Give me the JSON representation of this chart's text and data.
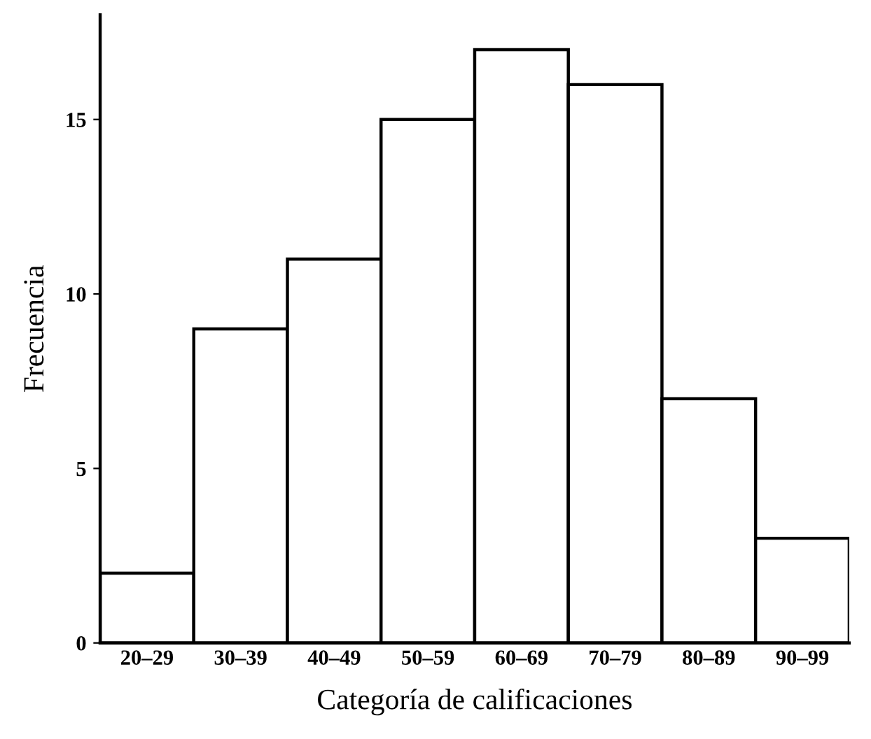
{
  "chart_data": {
    "type": "bar",
    "xlabel": "Categoría de calificaciones",
    "ylabel": "Frecuencia",
    "categories": [
      "20–29",
      "30–39",
      "40–49",
      "50–59",
      "60–69",
      "70–79",
      "80–89",
      "90–99"
    ],
    "values": [
      2,
      9,
      11,
      15,
      17,
      16,
      7,
      3
    ],
    "color": "#ffffff",
    "ylim": [
      0,
      18
    ],
    "yticks": [
      0,
      5,
      10,
      15
    ],
    "grid": false
  }
}
